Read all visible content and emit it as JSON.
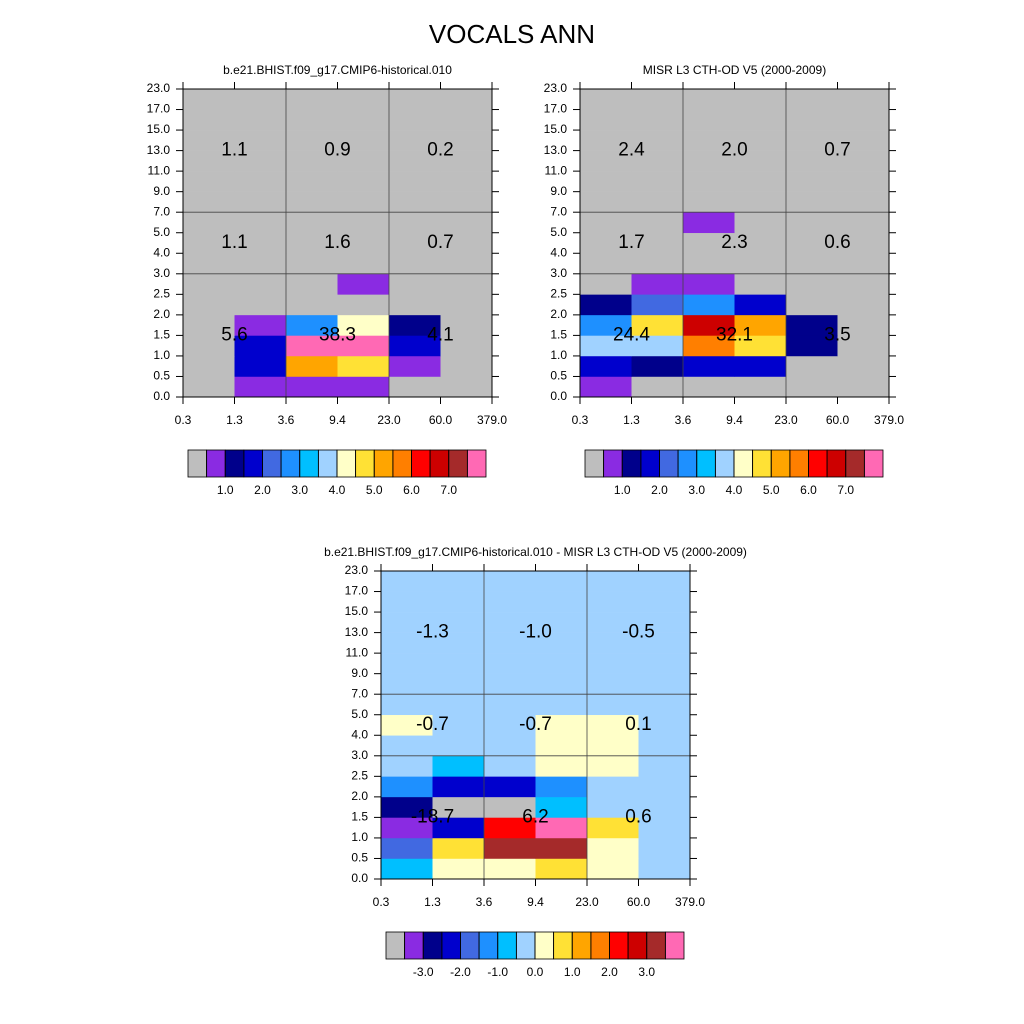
{
  "title": "VOCALS ANN",
  "chart_data": [
    {
      "type": "heatmap",
      "title": "b.e21.BHIST.f09_g17.CMIP6-historical.010",
      "x_edges": [
        "0.3",
        "1.3",
        "3.6",
        "9.4",
        "23.0",
        "60.0",
        "379.0"
      ],
      "y_edges": [
        "0.0",
        "0.5",
        "1.0",
        "1.5",
        "2.0",
        "2.5",
        "3.0",
        "4.0",
        "5.0",
        "7.0",
        "9.0",
        "11.0",
        "13.0",
        "15.0",
        "17.0",
        "23.0"
      ],
      "cells": [
        [
          0.1,
          0.75,
          0.75,
          0.75,
          0.1,
          0.1
        ],
        [
          0.1,
          1.75,
          5.25,
          4.75,
          0.75,
          0.1
        ],
        [
          0.1,
          1.75,
          9.5,
          9.5,
          1.75,
          0.1
        ],
        [
          0.1,
          0.75,
          2.75,
          4.25,
          1.25,
          0.1
        ],
        [
          0.1,
          0.1,
          0.1,
          0.1,
          0.1,
          0.1
        ],
        [
          0.1,
          0.1,
          0.1,
          0.75,
          0.1,
          0.1
        ],
        [
          0.1,
          0.1,
          0.1,
          0.1,
          0.1,
          0.1
        ],
        [
          0.1,
          0.1,
          0.1,
          0.1,
          0.1,
          0.1
        ],
        [
          0.1,
          0.1,
          0.1,
          0.1,
          0.1,
          0.1
        ],
        [
          0.1,
          0.1,
          0.1,
          0.1,
          0.1,
          0.1
        ],
        [
          0.1,
          0.1,
          0.1,
          0.1,
          0.1,
          0.1
        ],
        [
          0.1,
          0.1,
          0.1,
          0.1,
          0.1,
          0.1
        ],
        [
          0.1,
          0.1,
          0.1,
          0.1,
          0.1,
          0.1
        ],
        [
          0.1,
          0.1,
          0.1,
          0.1,
          0.1,
          0.1
        ],
        [
          0.1,
          0.1,
          0.1,
          0.1,
          0.1,
          0.1
        ]
      ],
      "levels": [
        0.5,
        1,
        1.5,
        2,
        2.5,
        3,
        3.5,
        4,
        4.5,
        5,
        5.5,
        6,
        6.5,
        7,
        7.5
      ],
      "colors": [
        "#bebebe",
        "#8a2be2",
        "#00008b",
        "#0000cd",
        "#4169e1",
        "#1e90ff",
        "#00bfff",
        "#a0d2ff",
        "#ffffc8",
        "#ffe135",
        "#ffa500",
        "#ff7f00",
        "#ff0000",
        "#cd0000",
        "#a52a2a",
        "#ff69b4"
      ],
      "colorbar_ticks": [
        {
          "value": 1,
          "label": "1.0"
        },
        {
          "value": 2,
          "label": "2.0"
        },
        {
          "value": 3,
          "label": "3.0"
        },
        {
          "value": 4,
          "label": "4.0"
        },
        {
          "value": 5,
          "label": "5.0"
        },
        {
          "value": 6,
          "label": "6.0"
        },
        {
          "value": 7,
          "label": "7.0"
        }
      ],
      "annotations": [
        [
          "5.6",
          "38.3",
          "4.1"
        ],
        [
          "1.1",
          "1.6",
          "0.7"
        ],
        [
          "1.1",
          "0.9",
          "0.2"
        ]
      ]
    },
    {
      "type": "heatmap",
      "title": "MISR L3 CTH-OD V5 (2000-2009)",
      "x_edges": [
        "0.3",
        "1.3",
        "3.6",
        "9.4",
        "23.0",
        "60.0",
        "379.0"
      ],
      "y_edges": [
        "0.0",
        "0.5",
        "1.0",
        "1.5",
        "2.0",
        "2.5",
        "3.0",
        "4.0",
        "5.0",
        "7.0",
        "9.0",
        "11.0",
        "13.0",
        "15.0",
        "17.0",
        "23.0"
      ],
      "cells": [
        [
          0.75,
          0.1,
          0.1,
          0.1,
          0.1,
          0.1
        ],
        [
          1.75,
          1.25,
          1.75,
          1.75,
          0.1,
          0.1
        ],
        [
          3.75,
          3.75,
          5.75,
          4.75,
          1.25,
          0.1
        ],
        [
          2.75,
          4.75,
          6.75,
          5.25,
          1.25,
          0.1
        ],
        [
          1.25,
          2.25,
          2.75,
          1.75,
          0.1,
          0.1
        ],
        [
          0.1,
          0.75,
          0.75,
          0.1,
          0.1,
          0.1
        ],
        [
          0.1,
          0.1,
          0.1,
          0.1,
          0.1,
          0.1
        ],
        [
          0.1,
          0.1,
          0.1,
          0.1,
          0.1,
          0.1
        ],
        [
          0.1,
          0.1,
          0.75,
          0.1,
          0.1,
          0.1
        ],
        [
          0.1,
          0.1,
          0.1,
          0.1,
          0.1,
          0.1
        ],
        [
          0.1,
          0.1,
          0.1,
          0.1,
          0.1,
          0.1
        ],
        [
          0.1,
          0.1,
          0.1,
          0.1,
          0.1,
          0.1
        ],
        [
          0.1,
          0.1,
          0.1,
          0.1,
          0.1,
          0.1
        ],
        [
          0.1,
          0.1,
          0.1,
          0.1,
          0.1,
          0.1
        ],
        [
          0.1,
          0.1,
          0.1,
          0.1,
          0.1,
          0.1
        ]
      ],
      "levels": [
        0.5,
        1,
        1.5,
        2,
        2.5,
        3,
        3.5,
        4,
        4.5,
        5,
        5.5,
        6,
        6.5,
        7,
        7.5
      ],
      "colors": [
        "#bebebe",
        "#8a2be2",
        "#00008b",
        "#0000cd",
        "#4169e1",
        "#1e90ff",
        "#00bfff",
        "#a0d2ff",
        "#ffffc8",
        "#ffe135",
        "#ffa500",
        "#ff7f00",
        "#ff0000",
        "#cd0000",
        "#a52a2a",
        "#ff69b4"
      ],
      "colorbar_ticks": [
        {
          "value": 1,
          "label": "1.0"
        },
        {
          "value": 2,
          "label": "2.0"
        },
        {
          "value": 3,
          "label": "3.0"
        },
        {
          "value": 4,
          "label": "4.0"
        },
        {
          "value": 5,
          "label": "5.0"
        },
        {
          "value": 6,
          "label": "6.0"
        },
        {
          "value": 7,
          "label": "7.0"
        }
      ],
      "annotations": [
        [
          "24.4",
          "32.1",
          "3.5"
        ],
        [
          "1.7",
          "2.3",
          "0.6"
        ],
        [
          "2.4",
          "2.0",
          "0.7"
        ]
      ]
    },
    {
      "type": "heatmap",
      "title": "b.e21.BHIST.f09_g17.CMIP6-historical.010 - MISR L3 CTH-OD V5 (2000-2009)",
      "x_edges": [
        "0.3",
        "1.3",
        "3.6",
        "9.4",
        "23.0",
        "60.0",
        "379.0"
      ],
      "y_edges": [
        "0.0",
        "0.5",
        "1.0",
        "1.5",
        "2.0",
        "2.5",
        "3.0",
        "4.0",
        "5.0",
        "7.0",
        "9.0",
        "11.0",
        "13.0",
        "15.0",
        "17.0",
        "23.0"
      ],
      "cells": [
        [
          -0.75,
          0.25,
          0.25,
          0.75,
          0.25,
          -0.25
        ],
        [
          -1.75,
          0.75,
          3.25,
          3.25,
          0.25,
          -0.25
        ],
        [
          -3.25,
          -2.25,
          2.25,
          5.2,
          0.75,
          -0.25
        ],
        [
          -2.75,
          -4.5,
          -4.5,
          -0.75,
          -0.25,
          -0.25
        ],
        [
          -1.25,
          -2.25,
          -2.25,
          -1.25,
          -0.25,
          -0.25
        ],
        [
          -0.25,
          -0.75,
          -0.25,
          0.25,
          0.25,
          -0.25
        ],
        [
          -0.25,
          -0.25,
          -0.25,
          0.25,
          0.25,
          -0.25
        ],
        [
          0.25,
          -0.25,
          -0.25,
          0.25,
          0.25,
          -0.25
        ],
        [
          -0.25,
          -0.25,
          -0.25,
          -0.25,
          -0.25,
          -0.25
        ],
        [
          -0.25,
          -0.25,
          -0.25,
          -0.25,
          -0.25,
          -0.25
        ],
        [
          -0.25,
          -0.25,
          -0.25,
          -0.25,
          -0.25,
          -0.25
        ],
        [
          -0.25,
          -0.25,
          -0.25,
          -0.25,
          -0.25,
          -0.25
        ],
        [
          -0.25,
          -0.25,
          -0.25,
          -0.25,
          -0.25,
          -0.25
        ],
        [
          -0.25,
          -0.25,
          -0.25,
          -0.25,
          -0.25,
          -0.25
        ],
        [
          -0.25,
          -0.25,
          -0.25,
          -0.25,
          -0.25,
          -0.25
        ]
      ],
      "levels": [
        -3.5,
        -3,
        -2.5,
        -2,
        -1.5,
        -1,
        -0.5,
        0,
        0.5,
        1,
        1.5,
        2,
        2.5,
        3,
        3.5
      ],
      "colors": [
        "#bebebe",
        "#8a2be2",
        "#00008b",
        "#0000cd",
        "#4169e1",
        "#1e90ff",
        "#00bfff",
        "#a0d2ff",
        "#ffffc8",
        "#ffe135",
        "#ffa500",
        "#ff7f00",
        "#ff0000",
        "#cd0000",
        "#a52a2a",
        "#ff69b4"
      ],
      "colorbar_ticks": [
        {
          "value": -3,
          "label": "-3.0"
        },
        {
          "value": -2,
          "label": "-2.0"
        },
        {
          "value": -1,
          "label": "-1.0"
        },
        {
          "value": 0,
          "label": "0.0"
        },
        {
          "value": 1,
          "label": "1.0"
        },
        {
          "value": 2,
          "label": "2.0"
        },
        {
          "value": 3,
          "label": "3.0"
        }
      ],
      "annotations": [
        [
          "-18.7",
          "6.2",
          "0.6"
        ],
        [
          "-0.7",
          "-0.7",
          "0.1"
        ],
        [
          "-1.3",
          "-1.0",
          "-0.5"
        ]
      ]
    }
  ]
}
